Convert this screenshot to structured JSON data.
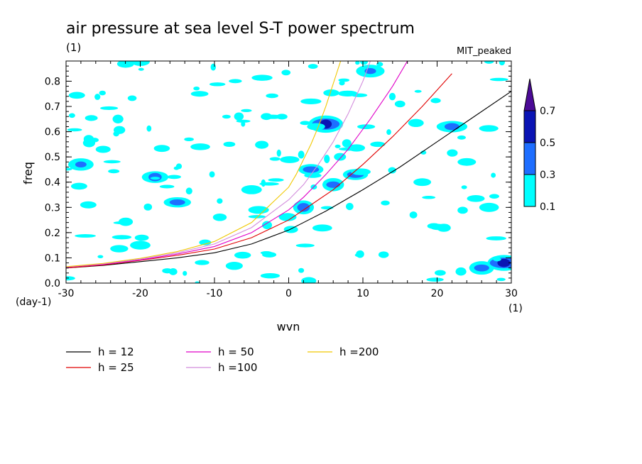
{
  "chart_data": {
    "type": "heatmap",
    "title": "air pressure at sea level S-T power spectrum",
    "subtitle": "(1)",
    "model_label": "MIT_peaked",
    "xlabel": "wvn",
    "ylabel": "freq",
    "x_unit_label": "(1)",
    "y_unit_label": "(day-1)",
    "xlim": [
      -30,
      30
    ],
    "ylim": [
      0,
      0.88
    ],
    "xticks": [
      -30,
      -20,
      -10,
      0,
      10,
      20,
      30
    ],
    "xtick_labels": [
      "-30",
      "-20",
      "-10",
      "0",
      "10",
      "20",
      "30"
    ],
    "yticks": [
      0,
      0.1,
      0.2,
      0.3,
      0.4,
      0.5,
      0.6,
      0.7,
      0.8
    ],
    "ytick_labels": [
      "0.0",
      "0.1",
      "0.2",
      "0.3",
      "0.4",
      "0.5",
      "0.6",
      "0.7",
      "0.8"
    ],
    "colorbar": {
      "levels": [
        0.1,
        0.3,
        0.5,
        0.7
      ],
      "labels": [
        "0.1",
        "0.3",
        "0.5",
        "0.7"
      ],
      "colors": [
        "#00ffff",
        "#1e6eff",
        "#0a14b4",
        "#4b0a96"
      ],
      "extend": "max"
    },
    "contour_blobs": [
      {
        "x": -28,
        "y": 0.47,
        "level": 2
      },
      {
        "x": -25,
        "y": 0.53,
        "level": 1
      },
      {
        "x": -23,
        "y": 0.65,
        "level": 1
      },
      {
        "x": -18,
        "y": 0.42,
        "level": 2
      },
      {
        "x": -15,
        "y": 0.32,
        "level": 2
      },
      {
        "x": -12,
        "y": 0.75,
        "level": 1
      },
      {
        "x": -27,
        "y": 0.31,
        "level": 1
      },
      {
        "x": -8,
        "y": 0.55,
        "level": 1
      },
      {
        "x": -5,
        "y": 0.37,
        "level": 1
      },
      {
        "x": -3,
        "y": 0.66,
        "level": 1
      },
      {
        "x": 3,
        "y": 0.72,
        "level": 1
      },
      {
        "x": 5,
        "y": 0.63,
        "level": 3
      },
      {
        "x": 3,
        "y": 0.45,
        "level": 2
      },
      {
        "x": 6,
        "y": 0.39,
        "level": 2
      },
      {
        "x": 2,
        "y": 0.3,
        "level": 2
      },
      {
        "x": 9,
        "y": 0.43,
        "level": 2
      },
      {
        "x": 11,
        "y": 0.84,
        "level": 2
      },
      {
        "x": 12,
        "y": 0.55,
        "level": 1
      },
      {
        "x": 15,
        "y": 0.71,
        "level": 1
      },
      {
        "x": 18,
        "y": 0.4,
        "level": 1
      },
      {
        "x": 22,
        "y": 0.62,
        "level": 2
      },
      {
        "x": 26,
        "y": 0.06,
        "level": 2
      },
      {
        "x": 29,
        "y": 0.08,
        "level": 3
      },
      {
        "x": 27,
        "y": 0.3,
        "level": 1
      },
      {
        "x": -20,
        "y": 0.15,
        "level": 1
      },
      {
        "x": 24,
        "y": 0.48,
        "level": 1
      }
    ],
    "series": [
      {
        "name": "h = 12",
        "color": "#000000",
        "x": [
          -30,
          -25,
          -20,
          -15,
          -10,
          -5,
          0,
          5,
          10,
          15,
          20,
          25,
          30
        ],
        "y": [
          0.06,
          0.07,
          0.085,
          0.1,
          0.12,
          0.155,
          0.21,
          0.285,
          0.37,
          0.46,
          0.56,
          0.66,
          0.76
        ]
      },
      {
        "name": "h = 25",
        "color": "#e00000",
        "x": [
          -30,
          -25,
          -20,
          -15,
          -10,
          -5,
          0,
          3,
          6,
          10,
          14,
          18,
          22
        ],
        "y": [
          0.06,
          0.072,
          0.09,
          0.11,
          0.135,
          0.18,
          0.25,
          0.31,
          0.37,
          0.47,
          0.58,
          0.7,
          0.83
        ]
      },
      {
        "name": "h = 50",
        "color": "#e000c8",
        "x": [
          -30,
          -25,
          -20,
          -15,
          -10,
          -5,
          0,
          2,
          5,
          8,
          11,
          14,
          16
        ],
        "y": [
          0.063,
          0.074,
          0.092,
          0.115,
          0.145,
          0.2,
          0.29,
          0.34,
          0.43,
          0.53,
          0.65,
          0.78,
          0.88
        ]
      },
      {
        "name": "h =100",
        "color": "#d28cdc",
        "x": [
          -30,
          -25,
          -20,
          -15,
          -10,
          -5,
          0,
          2,
          4,
          6,
          8,
          10,
          11
        ],
        "y": [
          0.064,
          0.076,
          0.095,
          0.12,
          0.155,
          0.22,
          0.33,
          0.39,
          0.47,
          0.56,
          0.67,
          0.8,
          0.88
        ]
      },
      {
        "name": "h =200",
        "color": "#f0c800",
        "x": [
          -30,
          -25,
          -20,
          -15,
          -10,
          -5,
          0,
          1,
          2,
          3,
          4,
          5,
          6,
          7
        ],
        "y": [
          0.065,
          0.078,
          0.098,
          0.125,
          0.165,
          0.24,
          0.38,
          0.43,
          0.49,
          0.55,
          0.62,
          0.7,
          0.79,
          0.88
        ]
      }
    ]
  }
}
